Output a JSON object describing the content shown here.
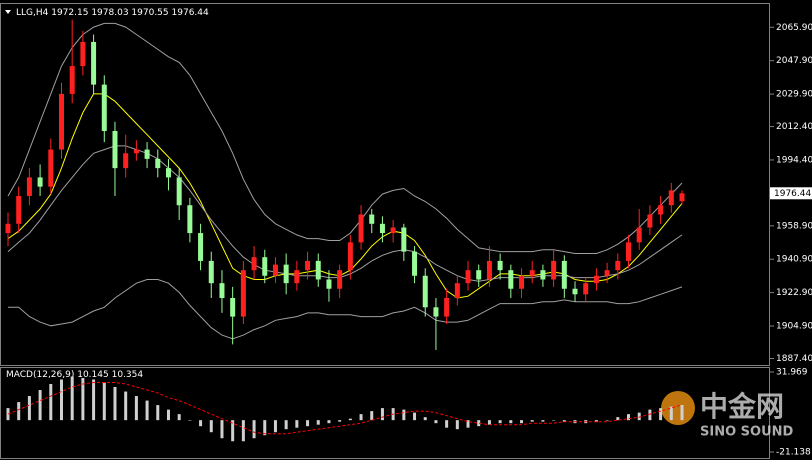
{
  "chart_data": {
    "type": "candlestick",
    "symbol": "LLG,H4",
    "open": [
      1955,
      1960,
      1975,
      1985,
      1980,
      2000,
      2030,
      2045,
      2058,
      2035,
      2010,
      1990,
      1998,
      2000,
      1995,
      1990,
      1985,
      1970,
      1955,
      1940,
      1928,
      1920,
      1910,
      1935,
      1942,
      1932,
      1938,
      1928,
      1935,
      1940,
      1930,
      1925,
      1935,
      1950,
      1965,
      1960,
      1955,
      1958,
      1945,
      1932,
      1915,
      1910,
      1920,
      1928,
      1935,
      1930,
      1940,
      1935,
      1925,
      1932,
      1935,
      1930,
      1940,
      1925,
      1922,
      1928,
      1932,
      1935,
      1940,
      1950,
      1958,
      1965,
      1970,
      1972.15
    ],
    "high": [
      1966,
      1980,
      1990,
      1992,
      2006,
      2036,
      2070,
      2064,
      2062,
      2040,
      2015,
      2008,
      2005,
      2004,
      2000,
      1995,
      1990,
      1974,
      1960,
      1945,
      1935,
      1926,
      1940,
      1948,
      1946,
      1942,
      1944,
      1940,
      1945,
      1944,
      1935,
      1938,
      1954,
      1970,
      1968,
      1964,
      1962,
      1960,
      1948,
      1936,
      1920,
      1925,
      1932,
      1940,
      1938,
      1948,
      1944,
      1938,
      1936,
      1940,
      1938,
      1946,
      1943,
      1929,
      1931,
      1936,
      1939,
      1944,
      1954,
      1968,
      1970,
      1975,
      1982,
      1978.03
    ],
    "low": [
      1948,
      1955,
      1970,
      1975,
      1976,
      1995,
      2025,
      2040,
      2030,
      2004,
      1975,
      1985,
      1994,
      1990,
      1985,
      1978,
      1962,
      1950,
      1935,
      1920,
      1912,
      1895,
      1906,
      1930,
      1928,
      1928,
      1922,
      1924,
      1930,
      1926,
      1918,
      1920,
      1930,
      1946,
      1955,
      1950,
      1950,
      1940,
      1928,
      1910,
      1892,
      1906,
      1916,
      1924,
      1926,
      1926,
      1930,
      1920,
      1920,
      1928,
      1926,
      1926,
      1920,
      1918,
      1918,
      1924,
      1928,
      1930,
      1936,
      1946,
      1954,
      1960,
      1966,
      1970.55
    ],
    "close": [
      1960,
      1975,
      1985,
      1980,
      2000,
      2030,
      2045,
      2058,
      2035,
      2010,
      1990,
      1998,
      2000,
      1995,
      1990,
      1985,
      1970,
      1955,
      1940,
      1928,
      1920,
      1910,
      1935,
      1942,
      1932,
      1938,
      1928,
      1935,
      1940,
      1930,
      1925,
      1935,
      1950,
      1965,
      1960,
      1955,
      1958,
      1945,
      1932,
      1915,
      1910,
      1920,
      1928,
      1935,
      1930,
      1940,
      1935,
      1925,
      1932,
      1935,
      1930,
      1940,
      1925,
      1922,
      1928,
      1932,
      1935,
      1940,
      1950,
      1958,
      1965,
      1970,
      1978,
      1976.44
    ],
    "up_color": "#ff2020",
    "down_color": "#98fb98",
    "overlays": [
      {
        "color": "#ffff00",
        "values": [
          1952,
          1956,
          1962,
          1968,
          1976,
          1990,
          2006,
          2020,
          2030,
          2030,
          2026,
          2020,
          2014,
          2008,
          2002,
          1996,
          1990,
          1982,
          1972,
          1960,
          1948,
          1936,
          1932,
          1930,
          1930,
          1932,
          1933,
          1933,
          1934,
          1935,
          1933,
          1932,
          1935,
          1941,
          1948,
          1953,
          1956,
          1955,
          1951,
          1943,
          1933,
          1924,
          1920,
          1921,
          1925,
          1929,
          1933,
          1933,
          1932,
          1932,
          1933,
          1934,
          1933,
          1930,
          1929,
          1929,
          1930,
          1933,
          1937,
          1943,
          1950,
          1957,
          1964,
          1971
        ]
      },
      {
        "color": "#a0a0a0",
        "values": [
          1945,
          1950,
          1955,
          1962,
          1970,
          1978,
          1985,
          1992,
          1998,
          2000,
          2002,
          2002,
          2000,
          1998,
          1995,
          1990,
          1985,
          1978,
          1970,
          1962,
          1955,
          1948,
          1942,
          1938,
          1935,
          1934,
          1933,
          1932,
          1932,
          1932,
          1931,
          1931,
          1933,
          1936,
          1940,
          1943,
          1945,
          1946,
          1945,
          1942,
          1938,
          1935,
          1932,
          1930,
          1929,
          1930,
          1931,
          1931,
          1931,
          1931,
          1932,
          1932,
          1932,
          1931,
          1931,
          1931,
          1932,
          1933,
          1935,
          1938,
          1942,
          1946,
          1950,
          1954
        ]
      },
      {
        "color": "#a0a0a0",
        "values": [
          1975,
          1985,
          2000,
          2015,
          2030,
          2045,
          2055,
          2062,
          2066,
          2068,
          2068,
          2066,
          2062,
          2058,
          2054,
          2050,
          2047,
          2040,
          2030,
          2020,
          2010,
          1998,
          1984,
          1973,
          1965,
          1960,
          1957,
          1954,
          1952,
          1952,
          1951,
          1951,
          1955,
          1962,
          1970,
          1976,
          1978,
          1979,
          1975,
          1972,
          1968,
          1963,
          1957,
          1952,
          1947,
          1946,
          1945,
          1945,
          1945,
          1945,
          1946,
          1946,
          1945,
          1944,
          1944,
          1944,
          1946,
          1949,
          1953,
          1958,
          1964,
          1970,
          1976,
          1982
        ]
      },
      {
        "color": "#a0a0a0",
        "values": [
          1915,
          1915,
          1910,
          1907,
          1905,
          1906,
          1907,
          1910,
          1913,
          1915,
          1920,
          1924,
          1928,
          1930,
          1930,
          1928,
          1923,
          1916,
          1910,
          1904,
          1900,
          1898,
          1900,
          1903,
          1905,
          1908,
          1909,
          1910,
          1912,
          1912,
          1911,
          1911,
          1911,
          1910,
          1910,
          1910,
          1912,
          1913,
          1915,
          1912,
          1908,
          1907,
          1907,
          1908,
          1911,
          1914,
          1917,
          1917,
          1917,
          1917,
          1918,
          1918,
          1919,
          1918,
          1918,
          1918,
          1918,
          1917,
          1917,
          1918,
          1920,
          1922,
          1924,
          1926
        ]
      }
    ],
    "ylim": [
      1883.9,
      2078.45
    ],
    "yticks": [
      {
        "value": 2065.9,
        "label": "2065.90"
      },
      {
        "value": 2047.9,
        "label": "2047.90"
      },
      {
        "value": 2029.9,
        "label": "2029.90"
      },
      {
        "value": 2012.4,
        "label": "2012.40"
      },
      {
        "value": 1994.4,
        "label": "1994.40"
      },
      {
        "value": 1958.9,
        "label": "1958.90"
      },
      {
        "value": 1940.9,
        "label": "1940.90"
      },
      {
        "value": 1922.9,
        "label": "1922.90"
      },
      {
        "value": 1904.9,
        "label": "1904.90"
      },
      {
        "value": 1887.4,
        "label": "1887.40"
      }
    ],
    "macd": {
      "label": "MACD(12,26,9)",
      "histogram": {
        "color": "#d0d0d0",
        "values": [
          8,
          12,
          16,
          20,
          24,
          27,
          29,
          28,
          27,
          25,
          22,
          19,
          16,
          13,
          10,
          7,
          4,
          0,
          -4,
          -8,
          -12,
          -14,
          -14,
          -12,
          -10,
          -8,
          -6,
          -5,
          -4,
          -3,
          -2,
          -1,
          1,
          4,
          6,
          8,
          8,
          7,
          5,
          2,
          -2,
          -5,
          -6,
          -5,
          -4,
          -3,
          -2,
          -2,
          -2,
          -1,
          -1,
          0,
          -1,
          -2,
          -2,
          -1,
          0,
          2,
          4,
          5,
          7,
          8,
          9,
          10.145
        ]
      },
      "signal": {
        "color": "#ff0000",
        "values": [
          4,
          7,
          10,
          13,
          16,
          19,
          22,
          24,
          25,
          25,
          25,
          24,
          22,
          20,
          18,
          15,
          13,
          10,
          7,
          4,
          1,
          -2,
          -5,
          -8,
          -9,
          -9,
          -9,
          -8,
          -7,
          -6,
          -5,
          -4,
          -3,
          -2,
          0,
          2,
          4,
          5,
          6,
          6,
          5,
          3,
          1,
          -1,
          -2,
          -3,
          -3,
          -3,
          -3,
          -2,
          -2,
          -2,
          -1,
          -1,
          -1,
          -1,
          -1,
          0,
          1,
          2,
          4,
          6,
          8,
          10.354
        ]
      },
      "ylim": [
        -21.138,
        31.969
      ],
      "yticks": [
        31.969,
        -21.138
      ]
    }
  },
  "watermark": {
    "title": "中金网",
    "subtitle": "SINO SOUND"
  }
}
